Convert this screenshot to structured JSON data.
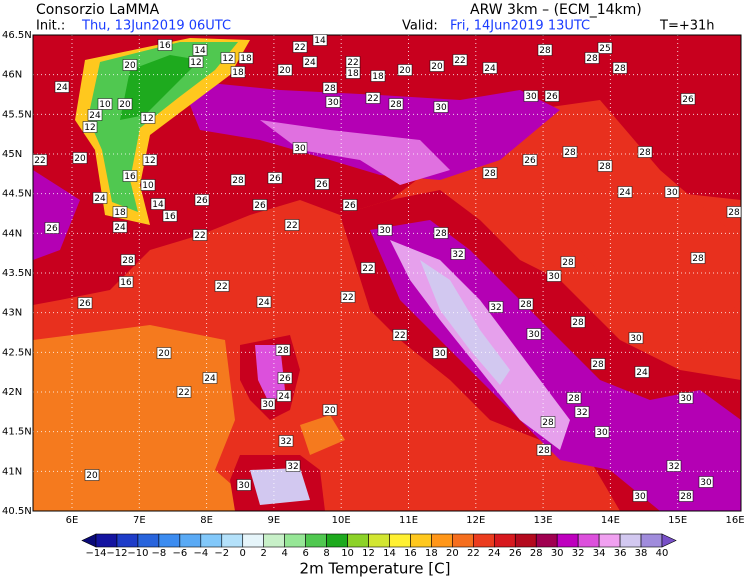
{
  "header": {
    "org": "Consorzio LaMMA",
    "init_label": "Init.:",
    "init_time": "Thu, 13Jun2019 06UTC",
    "model": "ARW 3km – (ECM_14km)",
    "valid_label": "Valid:",
    "valid_time": "Fri, 14Jun2019 13UTC",
    "lead": "T=+31h"
  },
  "map": {
    "lat_labels": [
      "46.5N",
      "46N",
      "45.5N",
      "45N",
      "44.5N",
      "44N",
      "43.5N",
      "43N",
      "42.5N",
      "42N",
      "41.5N",
      "41N",
      "40.5N"
    ],
    "lon_labels": [
      "6E",
      "7E",
      "8E",
      "9E",
      "10E",
      "11E",
      "12E",
      "13E",
      "14E",
      "15E",
      "16E"
    ],
    "station_values": [
      16,
      14,
      12,
      18,
      22,
      14,
      20,
      12,
      18,
      20,
      24,
      22,
      18,
      18,
      20,
      20,
      22,
      24,
      28,
      25,
      28,
      24,
      10,
      20,
      24,
      12,
      12,
      28,
      30,
      22,
      28,
      30,
      30,
      26,
      26,
      22,
      20,
      12,
      16,
      10,
      14,
      28,
      26,
      26,
      30,
      28,
      26,
      28,
      28,
      28,
      30,
      24,
      24,
      18,
      16,
      26,
      26,
      26,
      22,
      26,
      24,
      22,
      30,
      28,
      32,
      28,
      16,
      22,
      28,
      30,
      26,
      24,
      22,
      32,
      28,
      28,
      22,
      22,
      30,
      30,
      20,
      28,
      30,
      28,
      24,
      26,
      22,
      24,
      30,
      20,
      28,
      32,
      24,
      28,
      30,
      30,
      32,
      28,
      32,
      32,
      20,
      30,
      30,
      30,
      28,
      28,
      28,
      28
    ]
  },
  "colorbar": {
    "labels": [
      "−14",
      "−12",
      "−10",
      "−8",
      "−6",
      "−4",
      "−2",
      "0",
      "2",
      "4",
      "6",
      "8",
      "10",
      "12",
      "14",
      "16",
      "18",
      "20",
      "22",
      "24",
      "26",
      "28",
      "30",
      "32",
      "34",
      "36",
      "38",
      "40"
    ],
    "colors": [
      "#1414a0",
      "#1e3cc8",
      "#2864dc",
      "#3c8cf0",
      "#5aaaf5",
      "#82c8fa",
      "#b4e1fa",
      "#e6f5fa",
      "#c8f0c8",
      "#96e696",
      "#50c850",
      "#1eaa1e",
      "#8cd228",
      "#d2e632",
      "#fff032",
      "#ffc81e",
      "#ff9619",
      "#f56e1e",
      "#eb3c1e",
      "#d7191e",
      "#b40a1e",
      "#a00050",
      "#be00be",
      "#dc50dc",
      "#f0a0f0",
      "#d2c8f0",
      "#a08cdc"
    ],
    "under_color": "#0a0a78",
    "over_color": "#7850c8",
    "title": "2m Temperature [C]"
  }
}
